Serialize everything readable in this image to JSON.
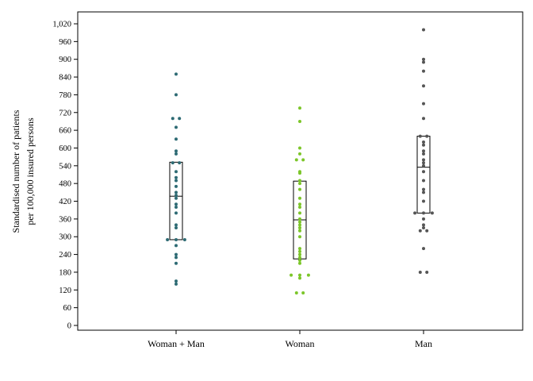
{
  "chart_data": {
    "type": "scatter",
    "title": "",
    "ylabel_lines": [
      "Standardised number of patients",
      "per 100,000 insured persons"
    ],
    "xlabel": "",
    "ylim": [
      0,
      1050
    ],
    "yticks": [
      0,
      60,
      120,
      180,
      240,
      300,
      360,
      420,
      480,
      540,
      600,
      660,
      720,
      780,
      840,
      900,
      960,
      1020
    ],
    "ytick_labels": [
      "0",
      "60",
      "120",
      "180",
      "240",
      "300",
      "360",
      "420",
      "480",
      "540",
      "600",
      "660",
      "720",
      "780",
      "840",
      "900",
      "960",
      "1,020"
    ],
    "grid": false,
    "legend": "none",
    "categories": [
      "Woman + Man",
      "Woman",
      "Man"
    ],
    "series": [
      {
        "color": "#2e6b74",
        "box": {
          "q1": 290,
          "median": 437,
          "q3": 552
        },
        "values": [
          850,
          780,
          700,
          700,
          670,
          630,
          590,
          580,
          550,
          550,
          520,
          500,
          490,
          470,
          450,
          440,
          430,
          410,
          400,
          380,
          340,
          330,
          290,
          290,
          290,
          270,
          240,
          230,
          210,
          150,
          140
        ]
      },
      {
        "color": "#7cc62a",
        "box": {
          "q1": 225,
          "median": 357,
          "q3": 488
        },
        "values": [
          735,
          690,
          600,
          580,
          560,
          560,
          520,
          515,
          490,
          480,
          460,
          430,
          410,
          400,
          380,
          360,
          350,
          340,
          330,
          320,
          300,
          260,
          250,
          240,
          230,
          220,
          210,
          170,
          170,
          170,
          160,
          110,
          110
        ]
      },
      {
        "color": "#555555",
        "box": {
          "q1": 380,
          "median": 535,
          "q3": 640
        },
        "values": [
          1000,
          900,
          890,
          860,
          810,
          750,
          700,
          640,
          640,
          620,
          610,
          590,
          580,
          560,
          550,
          540,
          520,
          490,
          460,
          450,
          420,
          380,
          380,
          380,
          360,
          340,
          330,
          320,
          320,
          260,
          180,
          180
        ]
      }
    ]
  }
}
